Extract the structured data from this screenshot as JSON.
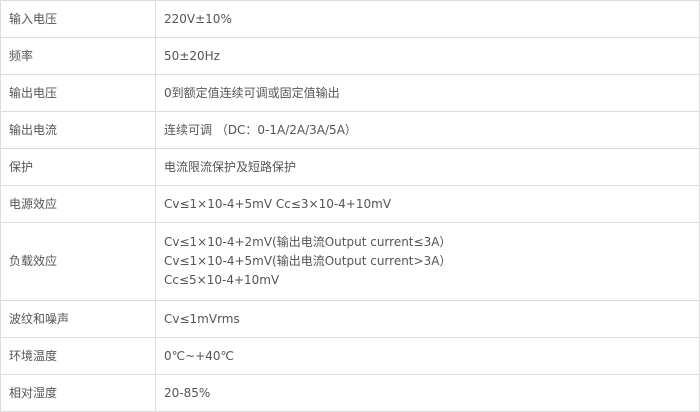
{
  "rows": [
    {
      "label": "输入电压",
      "values": [
        "220V±10%"
      ]
    },
    {
      "label": "频率",
      "values": [
        "50±20Hz"
      ]
    },
    {
      "label": "输出电压",
      "values": [
        "0到额定值连续可调或固定值输出"
      ]
    },
    {
      "label": "输出电流",
      "values": [
        "连续可调 （DC：0-1A/2A/3A/5A）"
      ]
    },
    {
      "label": "保护",
      "values": [
        "电流限流保护及短路保护"
      ]
    },
    {
      "label": "电源效应",
      "values": [
        "Cv≤1×10-4+5mV Cc≤3×10-4+10mV"
      ]
    },
    {
      "label": "负载效应",
      "values": [
        "Cv≤1×10-4+2mV(输出电流Output current≤3A）",
        "Cv≤1×10-4+5mV(输出电流Output current>3A）",
        "Cc≤5×10-4+10mV"
      ]
    },
    {
      "label": "波纹和噪声",
      "values": [
        "Cv≤1mVrms"
      ]
    },
    {
      "label": "环境温度",
      "values": [
        "0℃~+40℃"
      ]
    },
    {
      "label": "相对湿度",
      "values": [
        "20-85%"
      ]
    }
  ]
}
